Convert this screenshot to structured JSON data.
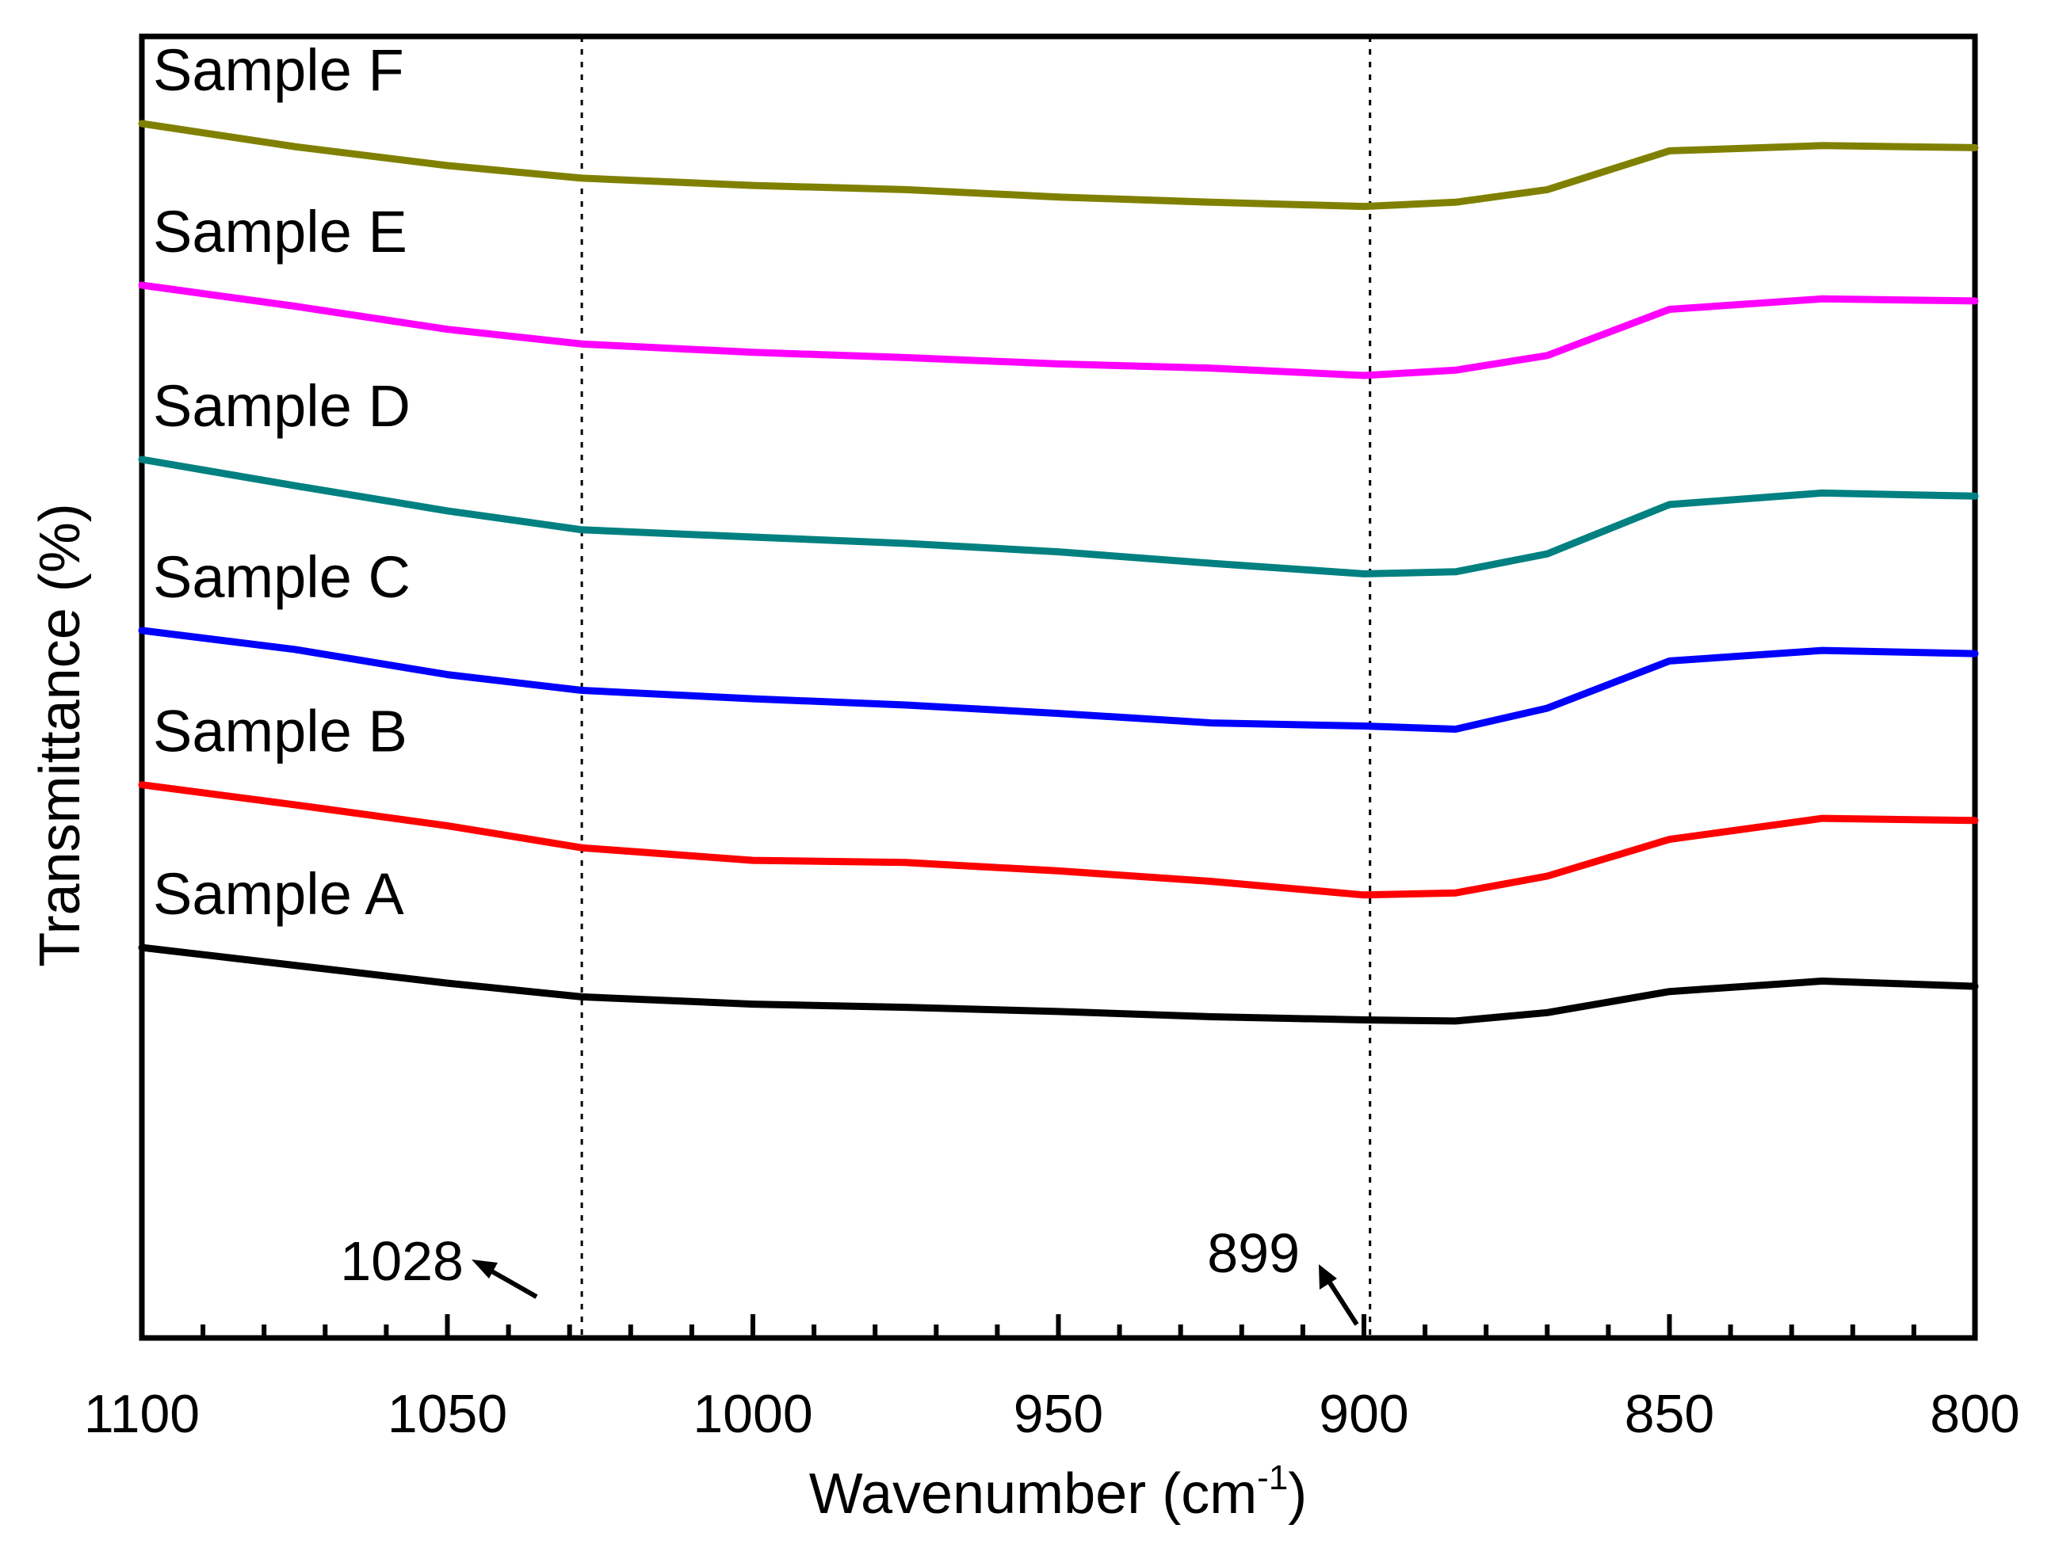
{
  "chart_data": {
    "type": "line",
    "title": "",
    "xlabel": "Wavenumber (cm",
    "xlabel_sup": "-1",
    "xlabel_close": ")",
    "ylabel": "Transmittance (%)",
    "xlim": [
      1100,
      800
    ],
    "x_reversed": true,
    "ylim": [
      0,
      1
    ],
    "y_ticks_shown": false,
    "x_ticks": [
      "1100",
      "1050",
      "1000",
      "950",
      "900",
      "850",
      "800"
    ],
    "grid": false,
    "x": [
      1100,
      1075,
      1050,
      1028,
      1000,
      975,
      950,
      925,
      900,
      885,
      870,
      850,
      825,
      800
    ],
    "series": [
      {
        "name": "Sample A",
        "color": "#000000",
        "values": [
          0.352,
          0.335,
          0.318,
          0.305,
          0.298,
          0.295,
          0.291,
          0.286,
          0.283,
          0.282,
          0.29,
          0.31,
          0.32,
          0.315
        ]
      },
      {
        "name": "Sample B",
        "color": "#ff0000",
        "values": [
          0.507,
          0.488,
          0.468,
          0.447,
          0.435,
          0.433,
          0.425,
          0.415,
          0.402,
          0.404,
          0.42,
          0.455,
          0.475,
          0.473
        ]
      },
      {
        "name": "Sample C",
        "color": "#0000ff",
        "values": [
          0.654,
          0.636,
          0.612,
          0.597,
          0.589,
          0.583,
          0.575,
          0.566,
          0.563,
          0.56,
          0.58,
          0.625,
          0.635,
          0.632
        ]
      },
      {
        "name": "Sample D",
        "color": "#008080",
        "values": [
          0.817,
          0.792,
          0.768,
          0.75,
          0.743,
          0.737,
          0.729,
          0.718,
          0.708,
          0.71,
          0.727,
          0.774,
          0.785,
          0.782
        ]
      },
      {
        "name": "Sample E",
        "color": "#ff00ff",
        "values": [
          0.983,
          0.963,
          0.941,
          0.927,
          0.919,
          0.914,
          0.908,
          0.904,
          0.897,
          0.902,
          0.916,
          0.96,
          0.97,
          0.968
        ]
      },
      {
        "name": "Sample F",
        "color": "#808000",
        "values": [
          1.137,
          1.115,
          1.097,
          1.085,
          1.078,
          1.074,
          1.067,
          1.062,
          1.058,
          1.062,
          1.074,
          1.111,
          1.116,
          1.114
        ]
      }
    ],
    "reference_lines": [
      {
        "x": 1028,
        "label": "1028"
      },
      {
        "x": 899,
        "label": "899"
      }
    ]
  }
}
